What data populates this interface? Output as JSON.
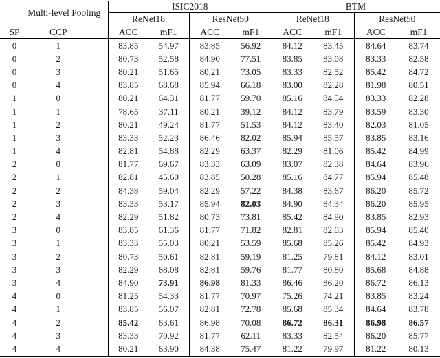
{
  "header": {
    "pooling_label": "Multi-level Pooling",
    "datasets": [
      {
        "label": "ISIC2018",
        "models": [
          "ReNet18",
          "ResNet50"
        ]
      },
      {
        "label": "BTM",
        "models": [
          "ReNet18",
          "ResNet50"
        ]
      }
    ],
    "sp_label": "SP",
    "ccp_label": "CCP",
    "acc_label": "ACC",
    "mf1_label": "mF1"
  },
  "rows": [
    {
      "sp": "0",
      "ccp": "1",
      "values": [
        "83.85",
        "54.97",
        "83.85",
        "56.92",
        "84.12",
        "83.45",
        "84.64",
        "83.74"
      ],
      "bold": []
    },
    {
      "sp": "0",
      "ccp": "2",
      "values": [
        "80.73",
        "52.58",
        "84.90",
        "77.51",
        "83.85",
        "83.08",
        "83.33",
        "82.58"
      ],
      "bold": []
    },
    {
      "sp": "0",
      "ccp": "3",
      "values": [
        "80.21",
        "51.65",
        "80.21",
        "73.05",
        "83.33",
        "82.52",
        "85.42",
        "84.72"
      ],
      "bold": []
    },
    {
      "sp": "0",
      "ccp": "4",
      "values": [
        "83.85",
        "68.68",
        "85.94",
        "66.18",
        "83.00",
        "82.28",
        "81.98",
        "80.51"
      ],
      "bold": []
    },
    {
      "sp": "1",
      "ccp": "0",
      "values": [
        "80.21",
        "64.31",
        "81.77",
        "59.70",
        "85.16",
        "84.54",
        "83.33",
        "82.28"
      ],
      "bold": []
    },
    {
      "sp": "1",
      "ccp": "1",
      "values": [
        "78.65",
        "37.11",
        "80.21",
        "39.12",
        "84.12",
        "83.79",
        "83.59",
        "83.30"
      ],
      "bold": []
    },
    {
      "sp": "1",
      "ccp": "2",
      "values": [
        "80.21",
        "49.24",
        "81.77",
        "51.53",
        "84.12",
        "83.40",
        "82.03",
        "81.05"
      ],
      "bold": []
    },
    {
      "sp": "1",
      "ccp": "3",
      "values": [
        "83.33",
        "52.23",
        "86.46",
        "82.02",
        "85.94",
        "85.57",
        "83.85",
        "83.16"
      ],
      "bold": []
    },
    {
      "sp": "1",
      "ccp": "4",
      "values": [
        "82.81",
        "54.88",
        "82.29",
        "63.37",
        "82.29",
        "81.06",
        "85.42",
        "84.99"
      ],
      "bold": []
    },
    {
      "sp": "2",
      "ccp": "0",
      "values": [
        "81.77",
        "69.67",
        "83.33",
        "63.09",
        "83.07",
        "82.38",
        "84.64",
        "83.96"
      ],
      "bold": []
    },
    {
      "sp": "2",
      "ccp": "1",
      "values": [
        "82.81",
        "45.60",
        "83.85",
        "50.28",
        "85.16",
        "84.77",
        "85.94",
        "85.48"
      ],
      "bold": []
    },
    {
      "sp": "2",
      "ccp": "2",
      "values": [
        "84.38",
        "59.04",
        "82.29",
        "57.22",
        "84.38",
        "83.67",
        "86.20",
        "85.72"
      ],
      "bold": []
    },
    {
      "sp": "2",
      "ccp": "3",
      "values": [
        "83.33",
        "53.17",
        "85.94",
        "82.03",
        "84.90",
        "84.34",
        "86.20",
        "85.95"
      ],
      "bold": [
        3
      ]
    },
    {
      "sp": "2",
      "ccp": "4",
      "values": [
        "82.29",
        "51.82",
        "80.73",
        "73.81",
        "85.42",
        "84.90",
        "83.85",
        "82.93"
      ],
      "bold": []
    },
    {
      "sp": "3",
      "ccp": "0",
      "values": [
        "83.85",
        "61.36",
        "81.77",
        "71.82",
        "82.81",
        "82.03",
        "85.94",
        "85.40"
      ],
      "bold": []
    },
    {
      "sp": "3",
      "ccp": "1",
      "values": [
        "83.33",
        "55.03",
        "80.21",
        "53.59",
        "85.68",
        "85.26",
        "85.42",
        "84.93"
      ],
      "bold": []
    },
    {
      "sp": "3",
      "ccp": "2",
      "values": [
        "80.73",
        "50.61",
        "82.81",
        "59.19",
        "81.25",
        "79.81",
        "84.12",
        "83.01"
      ],
      "bold": []
    },
    {
      "sp": "3",
      "ccp": "3",
      "values": [
        "82.29",
        "68.08",
        "82.81",
        "59.76",
        "81.77",
        "80.80",
        "85.68",
        "84.88"
      ],
      "bold": []
    },
    {
      "sp": "3",
      "ccp": "4",
      "values": [
        "84.90",
        "73.91",
        "86.98",
        "81.33",
        "86.46",
        "86.20",
        "86.72",
        "86.13"
      ],
      "bold": [
        1,
        2
      ]
    },
    {
      "sp": "4",
      "ccp": "0",
      "values": [
        "81.25",
        "54.33",
        "81.77",
        "70.97",
        "75.26",
        "74.21",
        "83.85",
        "83.24"
      ],
      "bold": []
    },
    {
      "sp": "4",
      "ccp": "1",
      "values": [
        "83.85",
        "56.07",
        "82.81",
        "72.78",
        "85.68",
        "85.34",
        "84.64",
        "83.78"
      ],
      "bold": []
    },
    {
      "sp": "4",
      "ccp": "2",
      "values": [
        "85.42",
        "63.61",
        "86.98",
        "70.08",
        "86.72",
        "86.31",
        "86.98",
        "86.57"
      ],
      "bold": [
        0,
        4,
        5,
        6,
        7
      ]
    },
    {
      "sp": "4",
      "ccp": "3",
      "values": [
        "83.33",
        "70.92",
        "81.77",
        "62.11",
        "83.33",
        "82.54",
        "86.20",
        "85.77"
      ],
      "bold": []
    },
    {
      "sp": "4",
      "ccp": "4",
      "values": [
        "80.21",
        "63.90",
        "84.38",
        "75.47",
        "81.22",
        "79.97",
        "81.22",
        "80.13"
      ],
      "bold": []
    }
  ]
}
